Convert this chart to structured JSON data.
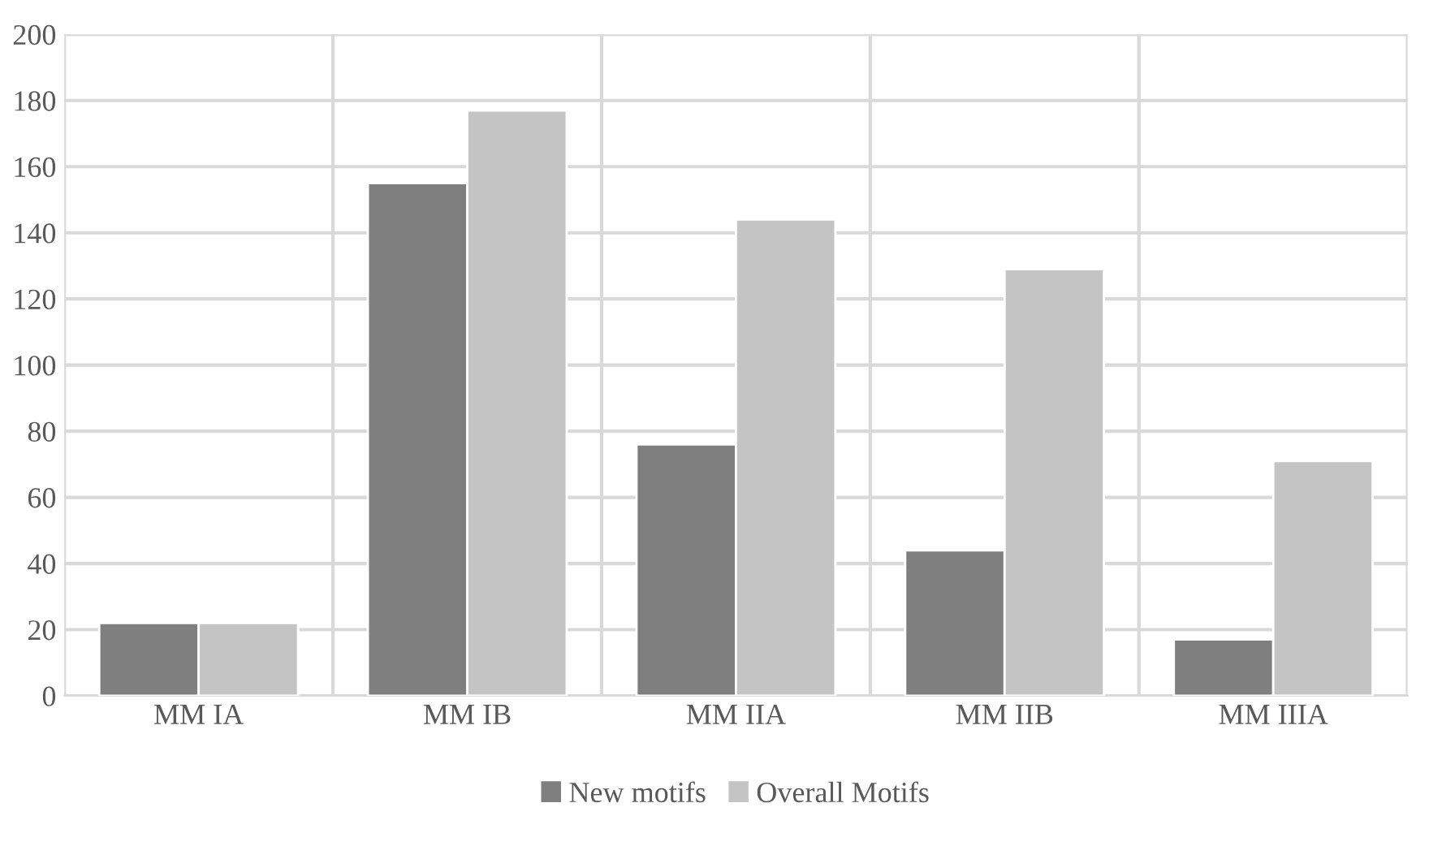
{
  "chart_data": {
    "type": "bar",
    "categories": [
      "MM IA",
      "MM IB",
      "MM IIA",
      "MM IIB",
      "MM IIIA"
    ],
    "series": [
      {
        "name": "New motifs",
        "color": "#7f7f7f",
        "values": [
          22,
          155,
          76,
          44,
          17
        ]
      },
      {
        "name": "Overall Motifs",
        "color": "#c4c4c4",
        "values": [
          22,
          177,
          144,
          129,
          71
        ]
      }
    ],
    "ylim": [
      0,
      200
    ],
    "yticks": [
      0,
      20,
      40,
      60,
      80,
      100,
      120,
      140,
      160,
      180,
      200
    ],
    "grid": true,
    "legend": "bottom"
  }
}
